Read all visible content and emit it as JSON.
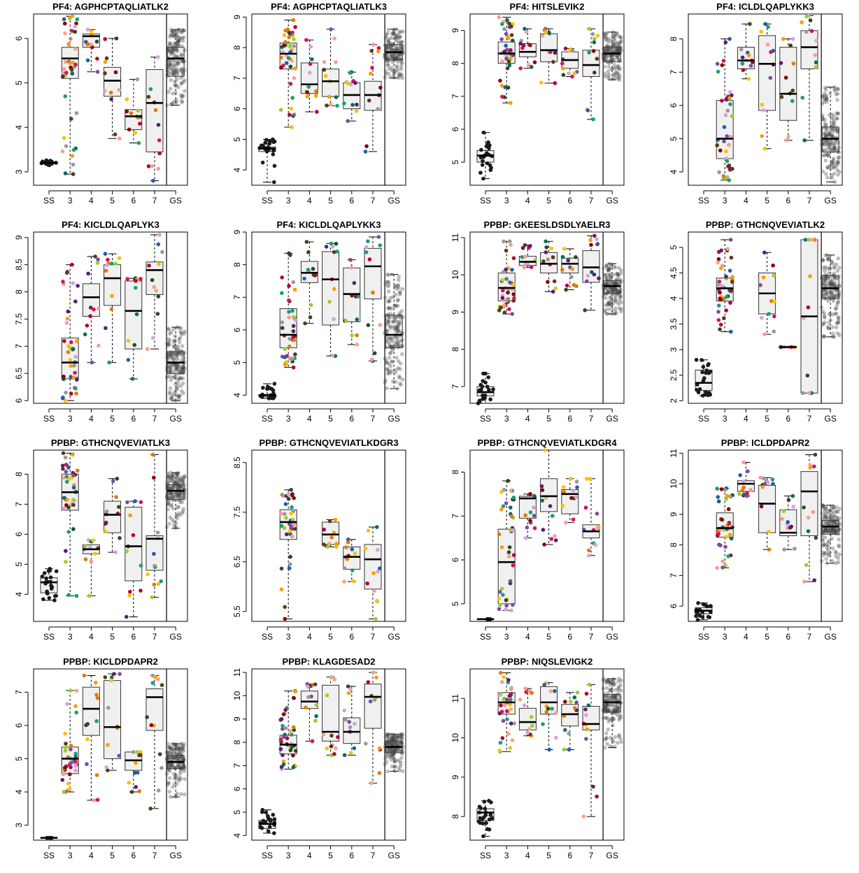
{
  "figure": {
    "x_categories": [
      "SS",
      "3",
      "4",
      "5",
      "6",
      "7",
      "GS"
    ],
    "group_colors": {
      "SS": "#1a1a1a",
      "GS": "#555555",
      "palette": [
        "#f5c400",
        "#f5a000",
        "#e07b00",
        "#d4145a",
        "#b5003a",
        "#5a1e6e",
        "#7b4ea0",
        "#1f5fa8",
        "#1b9e77",
        "#006d5b",
        "#2b4a1a",
        "#9acd32",
        "#ff9999",
        "#f4a582",
        "#d9a0e0",
        "#999999",
        "#5a3a1a",
        "#8b0000"
      ]
    }
  },
  "chart_data": [
    {
      "type": "box",
      "title": "PF4: AGPHCPTAQLIATLK2",
      "ylim": [
        2.7,
        6.55
      ],
      "yticks": [
        3,
        4,
        5,
        6
      ],
      "boxes": {
        "SS": [
          3.15,
          3.18,
          3.2,
          3.22,
          3.26
        ],
        "3": [
          2.95,
          5.1,
          5.55,
          5.8,
          6.5
        ],
        "4": [
          5.25,
          5.8,
          6.05,
          6.1,
          6.2
        ],
        "5": [
          3.75,
          4.7,
          5.05,
          5.35,
          6.0
        ],
        "6": [
          3.65,
          3.95,
          4.25,
          4.4,
          5.08
        ],
        "7": [
          2.8,
          3.45,
          4.55,
          5.3,
          5.58
        ],
        "GS": [
          4.5,
          5.15,
          5.55,
          5.8,
          6.2
        ]
      }
    },
    {
      "type": "box",
      "title": "PF4: AGPHCPTAQLIATLK3",
      "ylim": [
        3.5,
        9.1
      ],
      "yticks": [
        4,
        5,
        6,
        7,
        8,
        9
      ],
      "boxes": {
        "SS": [
          3.6,
          4.6,
          4.7,
          4.75,
          5.0
        ],
        "3": [
          5.4,
          7.3,
          7.8,
          8.15,
          8.9
        ],
        "4": [
          5.9,
          6.5,
          6.8,
          7.5,
          8.25
        ],
        "5": [
          6.1,
          6.4,
          6.9,
          7.3,
          8.6
        ],
        "6": [
          5.6,
          6.0,
          6.45,
          6.85,
          7.2
        ],
        "7": [
          4.6,
          5.95,
          6.45,
          6.9,
          8.1
        ],
        "GS": [
          7.0,
          7.6,
          7.85,
          8.1,
          8.6
        ]
      }
    },
    {
      "type": "box",
      "title": "PF4: HITSLEVIK2",
      "ylim": [
        4.3,
        9.5
      ],
      "yticks": [
        5,
        6,
        7,
        8,
        9
      ],
      "boxes": {
        "SS": [
          4.5,
          5.0,
          5.2,
          5.35,
          5.9
        ],
        "3": [
          6.8,
          8.0,
          8.3,
          8.65,
          9.4
        ],
        "4": [
          7.85,
          8.2,
          8.35,
          8.6,
          9.05
        ],
        "5": [
          7.4,
          8.05,
          8.4,
          8.9,
          9.05
        ],
        "6": [
          7.6,
          7.85,
          8.1,
          8.35,
          8.45
        ],
        "7": [
          6.3,
          7.6,
          7.95,
          8.4,
          9.05
        ],
        "GS": [
          7.5,
          8.05,
          8.3,
          8.5,
          8.95
        ]
      }
    },
    {
      "type": "box",
      "title": "PF4: ICLDLQAPLYKK3",
      "ylim": [
        3.6,
        8.75
      ],
      "yticks": [
        4,
        5,
        6,
        7,
        8
      ],
      "boxes": {
        "SS": [],
        "3": [
          3.75,
          4.4,
          5.0,
          6.15,
          8.0
        ],
        "4": [
          6.8,
          7.1,
          7.35,
          7.75,
          8.45
        ],
        "5": [
          4.7,
          5.85,
          7.25,
          8.1,
          8.45
        ],
        "6": [
          4.95,
          5.55,
          6.35,
          7.75,
          8.0
        ],
        "7": [
          4.95,
          7.1,
          7.75,
          8.25,
          8.7
        ],
        "GS": [
          3.7,
          4.6,
          5.0,
          5.35,
          6.55
        ]
      }
    },
    {
      "type": "box",
      "title": "PF4: KICLDLQAPLYK3",
      "ylim": [
        5.95,
        9.1
      ],
      "yticks": [
        6.0,
        6.5,
        7.0,
        7.5,
        8.0,
        8.5,
        9.0
      ],
      "boxes": {
        "SS": [],
        "3": [
          6.0,
          6.4,
          6.7,
          7.15,
          8.5
        ],
        "4": [
          6.7,
          7.55,
          7.9,
          8.15,
          8.65
        ],
        "5": [
          6.7,
          7.75,
          8.25,
          8.5,
          8.7
        ],
        "6": [
          6.4,
          6.95,
          7.65,
          8.2,
          8.25
        ],
        "7": [
          6.95,
          7.95,
          8.4,
          8.55,
          9.05
        ],
        "GS": [
          6.0,
          6.5,
          6.7,
          6.9,
          7.35
        ]
      }
    },
    {
      "type": "box",
      "title": "PF4: KICLDLQAPLYKK3",
      "ylim": [
        3.75,
        9.0
      ],
      "yticks": [
        4,
        5,
        6,
        7,
        8,
        9
      ],
      "boxes": {
        "SS": [
          3.9,
          3.95,
          4.0,
          4.02,
          4.35
        ],
        "3": [
          4.85,
          5.45,
          5.85,
          6.65,
          8.35
        ],
        "4": [
          6.2,
          7.45,
          7.75,
          8.1,
          8.7
        ],
        "5": [
          5.2,
          6.15,
          7.55,
          8.4,
          8.65
        ],
        "6": [
          5.55,
          6.25,
          7.1,
          7.9,
          8.15
        ],
        "7": [
          5.05,
          6.95,
          7.95,
          8.5,
          8.85
        ],
        "GS": [
          4.2,
          5.45,
          5.85,
          6.45,
          7.7
        ]
      }
    },
    {
      "type": "box",
      "title": "PPBP: GKEESLDSDLYAELR3",
      "ylim": [
        6.55,
        11.15
      ],
      "yticks": [
        7,
        8,
        9,
        10,
        11
      ],
      "boxes": {
        "SS": [
          6.55,
          6.75,
          6.85,
          7.0,
          7.35
        ],
        "3": [
          8.95,
          9.3,
          9.65,
          10.05,
          10.9
        ],
        "4": [
          10.2,
          10.25,
          10.35,
          10.5,
          10.8
        ],
        "5": [
          9.55,
          10.05,
          10.3,
          10.6,
          10.9
        ],
        "6": [
          9.6,
          10.05,
          10.3,
          10.45,
          10.7
        ],
        "7": [
          9.05,
          9.8,
          10.2,
          10.65,
          11.05
        ],
        "GS": [
          8.95,
          9.5,
          9.7,
          9.85,
          10.3
        ]
      }
    },
    {
      "type": "box",
      "title": "PPBP: GTHCNQVEVIATLK2",
      "ylim": [
        1.95,
        5.3
      ],
      "yticks": [
        2.0,
        2.5,
        3.0,
        3.5,
        4.0,
        4.5,
        5.0
      ],
      "boxes": {
        "SS": [
          2.1,
          2.2,
          2.35,
          2.6,
          2.8
        ],
        "3": [
          3.35,
          3.95,
          4.2,
          4.4,
          5.15
        ],
        "4": [],
        "5": [
          3.3,
          3.7,
          4.1,
          4.5,
          4.9
        ],
        "6": [
          3.05,
          3.05,
          3.05,
          3.05,
          3.05
        ],
        "7": [
          2.15,
          2.15,
          3.65,
          5.15,
          5.15
        ],
        "GS": [
          3.25,
          4.0,
          4.2,
          4.45,
          4.85
        ]
      }
    },
    {
      "type": "box",
      "title": "PPBP: GTHCNQVEVIATLK3",
      "ylim": [
        3.1,
        8.8
      ],
      "yticks": [
        4,
        5,
        6,
        7,
        8
      ],
      "boxes": {
        "SS": [
          3.8,
          4.05,
          4.4,
          4.55,
          4.85
        ],
        "3": [
          3.95,
          6.8,
          7.4,
          8.0,
          8.7
        ],
        "4": [
          3.95,
          5.35,
          5.5,
          5.65,
          5.8
        ],
        "5": [
          5.4,
          6.05,
          6.65,
          7.1,
          7.85
        ],
        "6": [
          3.25,
          4.45,
          5.6,
          6.9,
          7.1
        ],
        "7": [
          3.9,
          4.8,
          5.85,
          5.95,
          8.65
        ],
        "GS": [
          6.2,
          7.15,
          7.45,
          7.65,
          8.05
        ]
      }
    },
    {
      "type": "box",
      "title": "PPBP: GTHCNQVEVIATLKDGR3",
      "ylim": [
        5.3,
        8.75
      ],
      "yticks": [
        5.5,
        6.5,
        7.5,
        8.5
      ],
      "boxes": {
        "SS": [],
        "3": [
          5.35,
          6.95,
          7.3,
          7.55,
          7.95
        ],
        "4": [],
        "5": [
          6.8,
          6.85,
          7.05,
          7.3,
          7.35
        ],
        "6": [
          6.1,
          6.35,
          6.6,
          6.8,
          6.95
        ],
        "7": [
          5.35,
          5.95,
          6.55,
          6.85,
          7.2
        ],
        "GS": []
      }
    },
    {
      "type": "box",
      "title": "PPBP: GTHCNQVEVIATLKDGR4",
      "ylim": [
        4.6,
        8.5
      ],
      "yticks": [
        5,
        6,
        7,
        8
      ],
      "boxes": {
        "SS": [
          4.65,
          4.65,
          4.65,
          4.65,
          4.65
        ],
        "3": [
          4.85,
          5.0,
          5.95,
          6.7,
          7.8
        ],
        "4": [
          6.5,
          6.95,
          7.4,
          7.45,
          7.5
        ],
        "5": [
          6.35,
          7.1,
          7.45,
          7.85,
          8.5
        ],
        "6": [
          6.85,
          7.05,
          7.5,
          7.6,
          7.85
        ],
        "7": [
          6.1,
          6.5,
          6.65,
          6.8,
          7.85
        ],
        "GS": []
      }
    },
    {
      "type": "box",
      "title": "PPBP: ICLDPDAPR2",
      "ylim": [
        5.5,
        11.1
      ],
      "yticks": [
        6,
        7,
        8,
        9,
        10,
        11
      ],
      "boxes": {
        "SS": [
          5.55,
          5.75,
          5.85,
          5.95,
          6.1
        ],
        "3": [
          7.25,
          8.25,
          8.55,
          9.05,
          9.85
        ],
        "4": [
          9.6,
          9.75,
          10.0,
          10.1,
          10.7
        ],
        "5": [
          7.85,
          8.4,
          9.35,
          9.95,
          10.2
        ],
        "6": [
          7.85,
          8.3,
          8.4,
          9.15,
          9.6
        ],
        "7": [
          6.8,
          8.3,
          9.75,
          10.4,
          10.95
        ],
        "GS": [
          7.4,
          8.35,
          8.6,
          8.8,
          9.3
        ]
      }
    },
    {
      "type": "box",
      "title": "PPBP: KICLDPDAPR2",
      "ylim": [
        2.55,
        7.7
      ],
      "yticks": [
        3,
        4,
        5,
        6,
        7
      ],
      "boxes": {
        "SS": [
          2.62,
          2.62,
          2.62,
          2.62,
          2.62
        ],
        "3": [
          4.0,
          4.55,
          5.0,
          5.35,
          7.05
        ],
        "4": [
          3.75,
          5.7,
          6.5,
          7.15,
          7.5
        ],
        "5": [
          4.65,
          5.0,
          5.95,
          7.35,
          7.55
        ],
        "6": [
          4.0,
          4.65,
          4.95,
          5.2,
          5.2
        ],
        "7": [
          3.5,
          5.85,
          6.85,
          7.1,
          7.5
        ],
        "GS": [
          3.85,
          4.7,
          4.9,
          5.1,
          5.45
        ]
      }
    },
    {
      "type": "box",
      "title": "PPBP: KLAGDESAD2",
      "ylim": [
        3.8,
        11.15
      ],
      "yticks": [
        4,
        5,
        6,
        7,
        8,
        9,
        10,
        11
      ],
      "boxes": {
        "SS": [
          4.1,
          4.3,
          4.5,
          4.65,
          5.1
        ],
        "3": [
          6.85,
          7.5,
          7.9,
          8.3,
          10.2
        ],
        "4": [
          8.05,
          9.45,
          9.75,
          10.2,
          10.5
        ],
        "5": [
          7.45,
          8.05,
          8.45,
          10.45,
          10.8
        ],
        "6": [
          7.45,
          7.95,
          8.45,
          9.05,
          10.4
        ],
        "7": [
          6.25,
          8.6,
          9.95,
          10.5,
          11.0
        ],
        "GS": [
          6.75,
          7.55,
          7.8,
          8.05,
          8.35
        ]
      }
    },
    {
      "type": "box",
      "title": "PPBP: NIQSLEVIGK2",
      "ylim": [
        7.4,
        11.75
      ],
      "yticks": [
        8,
        9,
        10,
        11
      ],
      "boxes": {
        "SS": [
          7.5,
          7.9,
          8.1,
          8.2,
          8.4
        ],
        "3": [
          9.65,
          10.6,
          10.9,
          11.15,
          11.65
        ],
        "4": [
          10.05,
          10.2,
          10.4,
          10.75,
          11.25
        ],
        "5": [
          9.7,
          10.6,
          10.9,
          11.3,
          11.4
        ],
        "6": [
          9.7,
          10.3,
          10.6,
          10.85,
          11.15
        ],
        "7": [
          8.0,
          10.2,
          10.35,
          10.8,
          11.35
        ],
        "GS": [
          9.75,
          10.65,
          10.9,
          11.1,
          11.5
        ]
      }
    }
  ]
}
